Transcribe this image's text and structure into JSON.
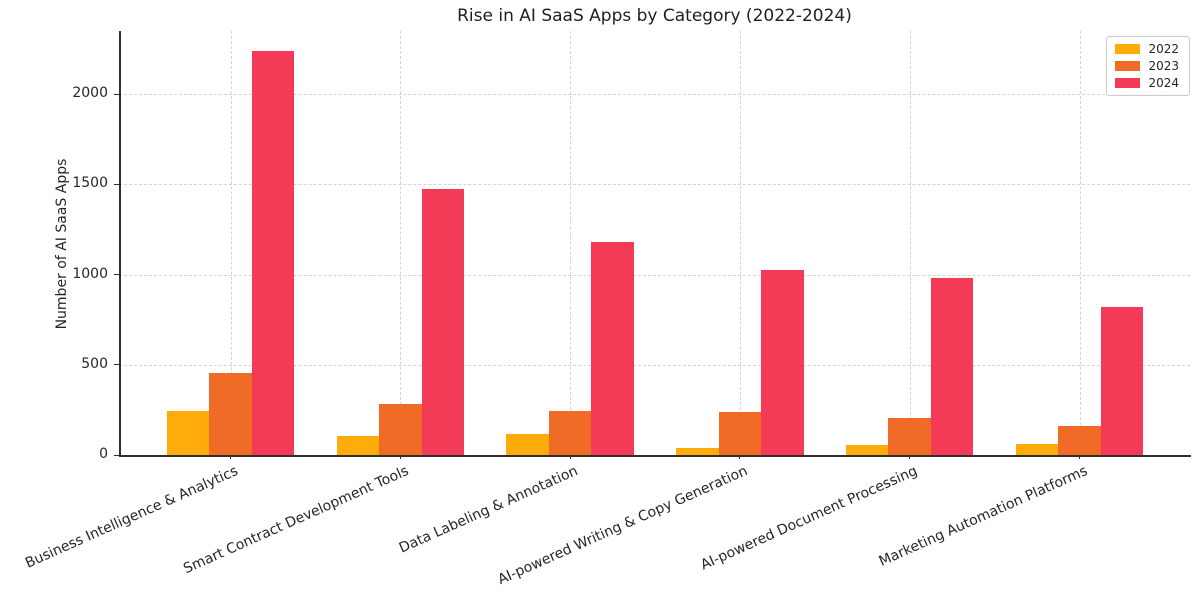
{
  "chart_data": {
    "type": "bar",
    "title": "Rise in AI SaaS Apps by Category (2022-2024)",
    "xlabel": "",
    "ylabel": "Number of AI SaaS Apps",
    "categories": [
      "Business Intelligence & Analytics",
      "Smart Contract Development Tools",
      "Data Labeling & Annotation",
      "AI-powered Writing & Copy Generation",
      "AI-powered Document Processing",
      "Marketing Automation Platforms"
    ],
    "series": [
      {
        "name": "2022",
        "color": "#FFAC0A",
        "values": [
          245,
          105,
          115,
          40,
          55,
          60
        ]
      },
      {
        "name": "2023",
        "color": "#F06C26",
        "values": [
          455,
          285,
          245,
          240,
          205,
          160
        ]
      },
      {
        "name": "2024",
        "color": "#F33A56",
        "values": [
          2240,
          1475,
          1180,
          1025,
          980,
          820
        ]
      }
    ],
    "yticks": [
      0,
      500,
      1000,
      1500,
      2000
    ],
    "ylim": [
      0,
      2350
    ],
    "grid": true,
    "grid_style": "dashed",
    "legend_position": "upper right",
    "background_color": "#ffffff",
    "text_color": "#262626"
  }
}
